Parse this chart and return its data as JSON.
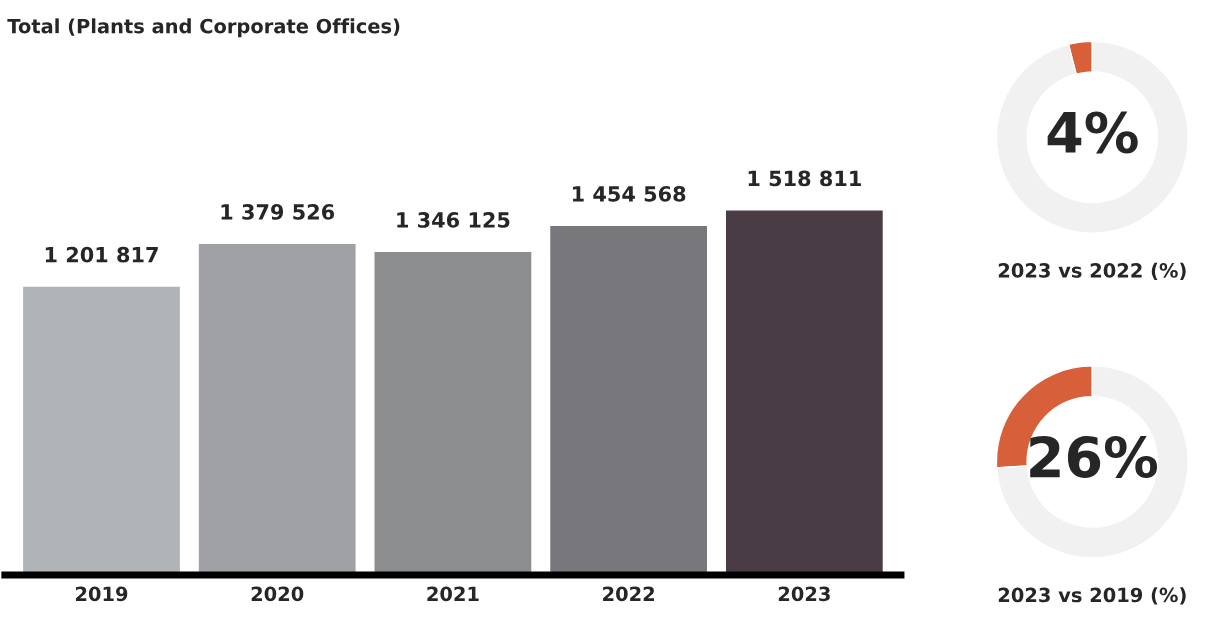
{
  "chart_data": [
    {
      "type": "bar",
      "title": "Total (Plants and Corporate Offices)",
      "categories": [
        "2019",
        "2020",
        "2021",
        "2022",
        "2023"
      ],
      "values": [
        1201817,
        1379526,
        1346125,
        1454568,
        1518811
      ],
      "value_labels": [
        "1 201 817",
        "1 379 526",
        "1 346 125",
        "1 454 568",
        "1 518 811"
      ],
      "colors": [
        "#b1b4b6",
        "#a0a1a5",
        "#8c8d8f",
        "#78787c",
        "#4a3c45"
      ],
      "grid": false,
      "legend": false
    },
    {
      "type": "donut",
      "categories": [
        null,
        null
      ],
      "values": [
        4,
        96
      ],
      "colors": [
        "#d75f3a",
        "#f1f1f1"
      ],
      "annotations": [
        "4%"
      ],
      "xlabel": "2023 vs 2022 (%)",
      "legend": false
    },
    {
      "type": "donut",
      "categories": [
        null,
        null
      ],
      "values": [
        26,
        74
      ],
      "colors": [
        "#d75f3a",
        "#f1f1f1"
      ],
      "annotations": [
        "26%"
      ],
      "xlabel": "2023 vs 2019 (%)",
      "legend": false
    }
  ]
}
